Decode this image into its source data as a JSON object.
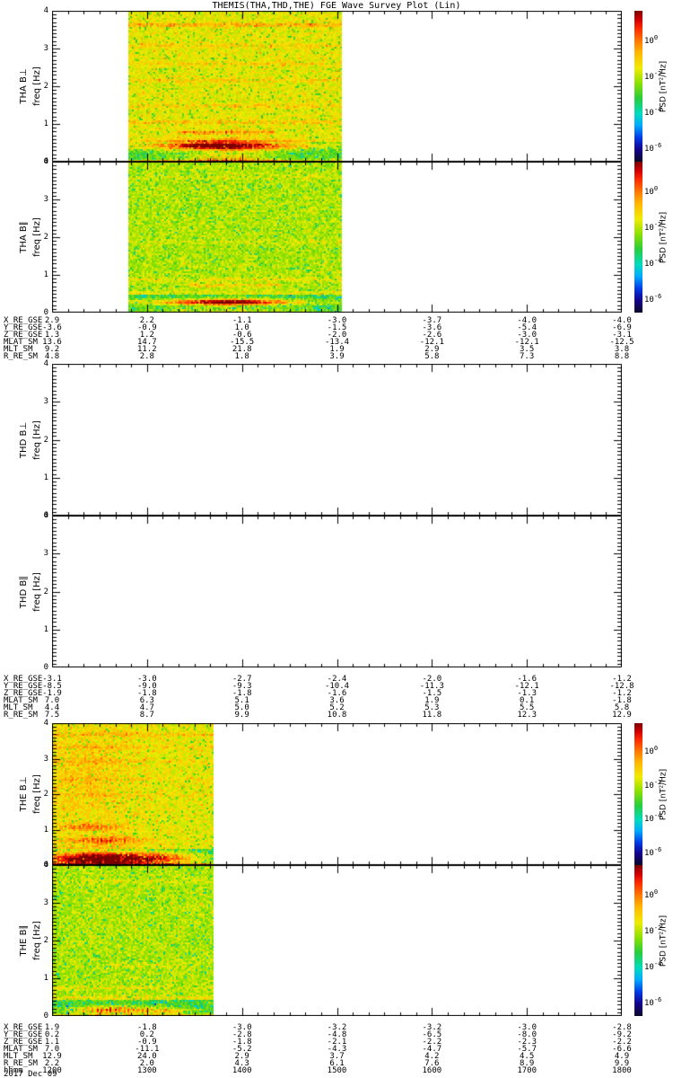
{
  "title": "THEMIS(THA,THD,THE) FGE Wave Survey Plot (Lin)",
  "date_label": "2017 Dec 09",
  "axis": {
    "freq_label": "freq [Hz]",
    "freq_ticks": [
      "0",
      "1",
      "2",
      "3",
      "4"
    ],
    "time_tick_label_row": "hhmm"
  },
  "colorbar": {
    "label": "PSD [nT²/Hz]",
    "tick_exponents": [
      "0",
      "-2",
      "-4",
      "-6"
    ],
    "scale": "log"
  },
  "panels": [
    {
      "label": "THA B⊥",
      "freq_label": "freq [Hz]"
    },
    {
      "label": "THA B∥",
      "freq_label": "freq [Hz]"
    },
    {
      "label": "THD B⊥",
      "freq_label": "freq [Hz]"
    },
    {
      "label": "THD B∥",
      "freq_label": "freq [Hz]"
    },
    {
      "label": "THE B⊥",
      "freq_label": "freq [Hz]"
    },
    {
      "label": "THE B∥",
      "freq_label": "freq [Hz]"
    }
  ],
  "annotations": {
    "row_labels": [
      "X_RE_GSE",
      "Y_RE_GSE",
      "Z_RE_GSE",
      "MLAT_SM",
      "MLT_SM",
      "R_RE_SM"
    ],
    "hhmm_label": "hhmm",
    "blocks": [
      {
        "rows": [
          [
            "2.9",
            "2.2",
            "-1.1",
            "-3.0",
            "-3.7",
            "-4.0",
            "-4.0"
          ],
          [
            "-3.6",
            "-0.9",
            "1.0",
            "-1.5",
            "-3.6",
            "-5.4",
            "-6.9"
          ],
          [
            "1.3",
            "1.2",
            "-0.6",
            "-2.0",
            "-2.6",
            "-3.0",
            "-3.1"
          ],
          [
            "13.6",
            "14.7",
            "-15.5",
            "-13.4",
            "-12.1",
            "-12.1",
            "-12.5"
          ],
          [
            "9.2",
            "11.2",
            "21.8",
            "1.9",
            "2.9",
            "3.5",
            "3.8"
          ],
          [
            "4.8",
            "2.8",
            "1.8",
            "3.9",
            "5.8",
            "7.3",
            "8.8"
          ]
        ]
      },
      {
        "rows": [
          [
            "-3.1",
            "-3.0",
            "-2.7",
            "-2.4",
            "-2.0",
            "-1.6",
            "-1.2"
          ],
          [
            "-8.5",
            "-9.0",
            "-9.3",
            "-10.4",
            "-11.3",
            "-12.1",
            "-12.8"
          ],
          [
            "-1.9",
            "-1.8",
            "-1.8",
            "-1.6",
            "-1.5",
            "-1.3",
            "-1.2"
          ],
          [
            "7.0",
            "6.3",
            "5.1",
            "3.6",
            "1.9",
            "0.1",
            "-1.8"
          ],
          [
            "4.4",
            "4.7",
            "5.0",
            "5.2",
            "5.3",
            "5.5",
            "5.8"
          ],
          [
            "7.5",
            "8.7",
            "9.9",
            "10.8",
            "11.8",
            "12.3",
            "12.9"
          ]
        ]
      },
      {
        "rows": [
          [
            "1.9",
            "-1.8",
            "-3.0",
            "-3.2",
            "-3.2",
            "-3.0",
            "-2.8"
          ],
          [
            "0.2",
            "0.2",
            "-2.8",
            "-4.8",
            "-6.5",
            "-8.0",
            "-9.2"
          ],
          [
            "1.1",
            "-0.9",
            "-1.8",
            "-2.1",
            "-2.2",
            "-2.3",
            "-2.2"
          ],
          [
            "7.0",
            "-11.1",
            "-5.2",
            "-4.3",
            "-4.7",
            "-5.7",
            "-6.6"
          ],
          [
            "12.9",
            "24.0",
            "2.9",
            "3.7",
            "4.2",
            "4.5",
            "4.9"
          ],
          [
            "2.2",
            "2.0",
            "4.3",
            "6.1",
            "7.6",
            "8.9",
            "9.9"
          ]
        ],
        "hhmm": [
          "1200",
          "1300",
          "1400",
          "1500",
          "1600",
          "1700",
          "1800"
        ]
      }
    ]
  },
  "chart_data": {
    "type": "heatmap",
    "title": "THEMIS(THA,THD,THE) FGE Wave Survey Plot (Lin)",
    "x_axis": {
      "label": "hhmm, 2017 Dec 09",
      "ticks": [
        "1200",
        "1300",
        "1400",
        "1500",
        "1600",
        "1700",
        "1800"
      ],
      "range_hours": [
        12,
        18
      ]
    },
    "y_axis": {
      "label": "freq [Hz]",
      "range": [
        0,
        4
      ],
      "ticks": [
        0,
        1,
        2,
        3,
        4
      ]
    },
    "colorbar": {
      "label": "PSD [nT²/Hz]",
      "scale": "log",
      "tick_exponents": [
        0,
        -2,
        -4,
        -6
      ],
      "colors_top_to_bottom": [
        "#7a0000",
        "#ff2d00",
        "#ffb900",
        "#f0eb00",
        "#28cd3c",
        "#00dcbe",
        "#00aaff",
        "#14008c",
        "#0a0a28"
      ]
    },
    "panels": [
      {
        "name": "THA B⊥",
        "has_data": true,
        "time_range_hhmm": [
          "1248",
          "1503"
        ],
        "t0": 12.8,
        "t1": 15.05,
        "freq_range_hz": [
          0,
          4
        ],
        "texture": "bperp",
        "green_band_top_hz": 0.56,
        "streaks": [
          {
            "f": 3.65,
            "a": 0.12
          },
          {
            "f": 3.1,
            "a": 0.07
          },
          {
            "f": 2.62,
            "a": 0.06
          },
          {
            "f": 2.18,
            "a": 0.07
          },
          {
            "f": 1.5,
            "a": 0.06
          },
          {
            "f": 1.07,
            "a": 0.09
          },
          {
            "f": 0.8,
            "a": 0.22,
            "t": [
              13.3,
              14.35
            ],
            "comb": 1
          },
          {
            "f": 0.03,
            "a": 0.22
          }
        ],
        "blobs": [
          {
            "t": 13.8,
            "f": 0.45,
            "rt": 1.35,
            "rf": 0.11,
            "a": 0.3
          },
          {
            "t": 13.8,
            "f": 0.45,
            "rt": 0.55,
            "rf": 0.14,
            "a": 0.38
          },
          {
            "t": 13.85,
            "f": 0.1,
            "rt": 0.5,
            "rf": 0.16,
            "a": 0.32,
            "comb": 1
          }
        ]
      },
      {
        "name": "THA B∥",
        "has_data": true,
        "time_range_hhmm": [
          "1248",
          "1503"
        ],
        "t0": 12.8,
        "t1": 15.05,
        "freq_range_hz": [
          0,
          4
        ],
        "texture": "bpar",
        "green_band_top_hz": 0.5,
        "streaks": [
          {
            "f": 3.6,
            "a": 0.05
          },
          {
            "f": 1.9,
            "a": 0.04
          },
          {
            "f": 0.9,
            "a": 0.07
          },
          {
            "f": 0.75,
            "a": 0.12,
            "t": [
              13.4,
              14.4
            ]
          },
          {
            "f": 0.55,
            "a": 0.07
          }
        ],
        "blobs": [
          {
            "t": 13.8,
            "f": 0.3,
            "rt": 1.15,
            "rf": 0.07,
            "a": 0.3
          },
          {
            "t": 13.85,
            "f": 0.3,
            "rt": 0.5,
            "rf": 0.1,
            "a": 0.33
          },
          {
            "t": 13.8,
            "f": 0.06,
            "rt": 0.95,
            "rf": 0.09,
            "a": 0.22,
            "comb": 1
          }
        ]
      },
      {
        "name": "THD B⊥",
        "has_data": false,
        "time_range_hhmm": null,
        "freq_range_hz": [
          0,
          4
        ],
        "texture": "none",
        "streaks": [],
        "blobs": []
      },
      {
        "name": "THD B∥",
        "has_data": false,
        "time_range_hhmm": null,
        "freq_range_hz": [
          0,
          4
        ],
        "texture": "none",
        "streaks": [],
        "blobs": []
      },
      {
        "name": "THE B⊥",
        "has_data": true,
        "time_range_hhmm": [
          "1200",
          "1341"
        ],
        "t0": 12.0,
        "t1": 13.69,
        "freq_range_hz": [
          0,
          4
        ],
        "texture": "bperp",
        "green_band_top_hz": 0.5,
        "streaks": [
          {
            "f": 3.7,
            "a": 0.09
          },
          {
            "f": 3.35,
            "a": 0.06
          },
          {
            "f": 2.95,
            "a": 0.05
          },
          {
            "f": 2.45,
            "a": 0.05
          },
          {
            "f": 2.0,
            "a": 0.05
          },
          {
            "f": 0.03,
            "a": 0.28
          }
        ],
        "blobs": [
          {
            "t": 12.45,
            "f": 0.2,
            "rt": 0.62,
            "rf": 0.22,
            "a": 0.62
          },
          {
            "t": 13.15,
            "f": 0.22,
            "rt": 0.45,
            "rf": 0.16,
            "a": 0.3
          },
          {
            "t": 12.55,
            "f": 0.72,
            "rt": 0.42,
            "rf": 0.1,
            "a": 0.3,
            "comb": 1
          },
          {
            "t": 12.4,
            "f": 1.1,
            "rt": 0.32,
            "rf": 0.1,
            "a": 0.26,
            "comb": 1
          },
          {
            "t": 12.35,
            "f": 2.6,
            "rt": 0.55,
            "rf": 1.5,
            "a": 0.07
          }
        ]
      },
      {
        "name": "THE B∥",
        "has_data": true,
        "time_range_hhmm": [
          "1200",
          "1341"
        ],
        "t0": 12.0,
        "t1": 13.69,
        "freq_range_hz": [
          0,
          4
        ],
        "texture": "bpar",
        "green_band_top_hz": 0.45,
        "streaks": [
          {
            "f": 3.6,
            "a": 0.05
          },
          {
            "f": 1.35,
            "a": 0.06,
            "t": [
              12.6,
              13.4
            ]
          },
          {
            "f": 0.78,
            "a": 0.08
          },
          {
            "f": 0.5,
            "a": 0.1
          },
          {
            "f": 0.03,
            "a": 0.2
          }
        ],
        "blobs": [
          {
            "t": 12.6,
            "f": 0.18,
            "rt": 0.42,
            "rf": 0.1,
            "a": 0.5,
            "comb": 1
          },
          {
            "t": 13.2,
            "f": 0.16,
            "rt": 0.28,
            "rf": 0.08,
            "a": 0.22
          }
        ]
      }
    ]
  }
}
